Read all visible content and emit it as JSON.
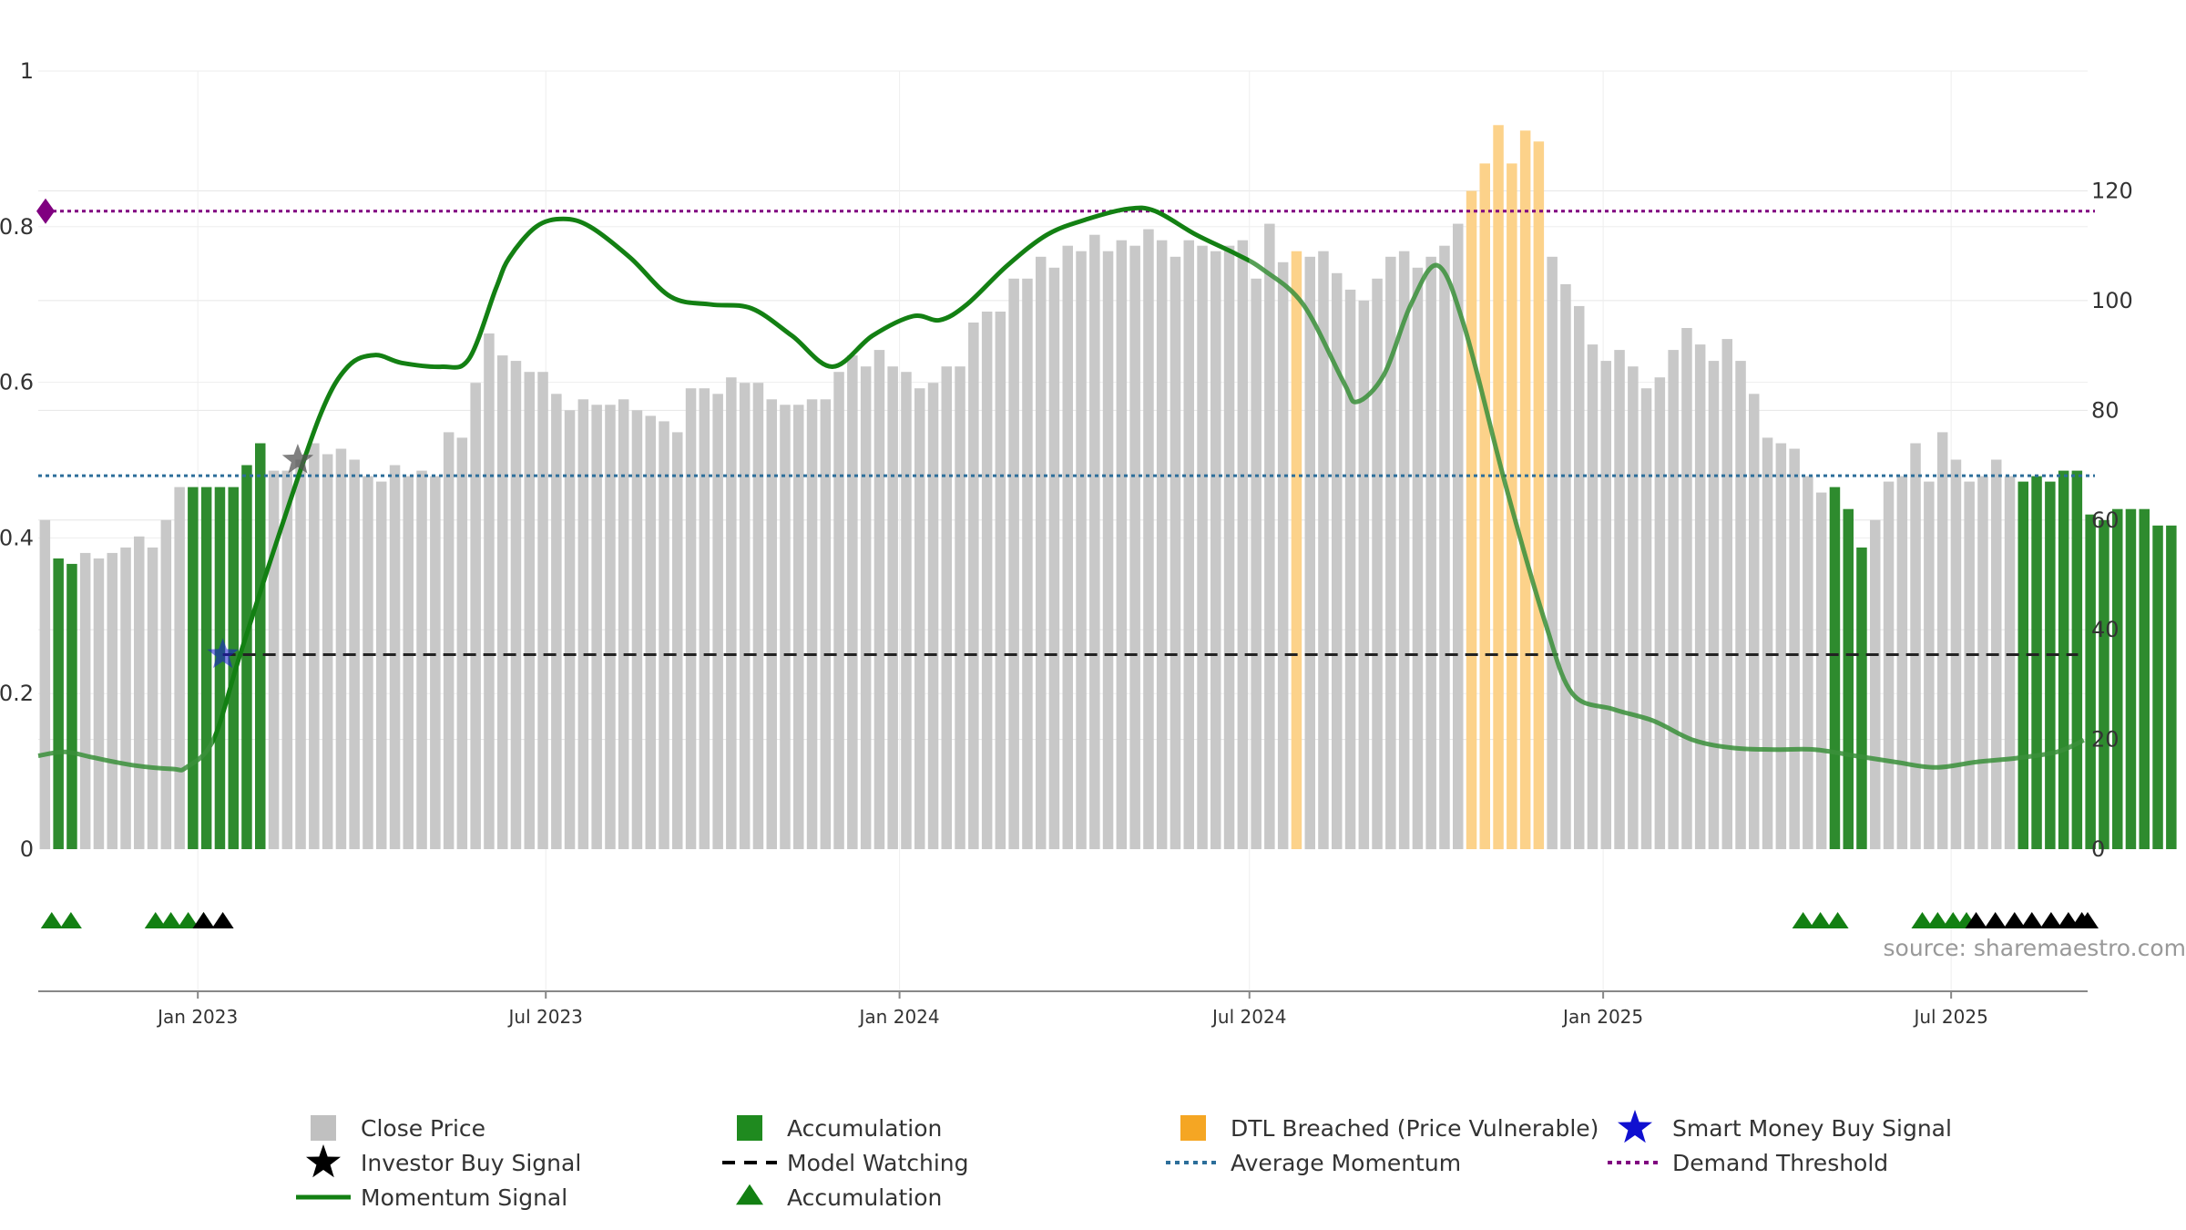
{
  "chart_data": {
    "type": "bar",
    "title": "",
    "xlabel": "",
    "left_axis": {
      "ticks": [
        0,
        0.2,
        0.4,
        0.6,
        0.8,
        1
      ],
      "labels": [
        "0",
        "0.2",
        "0.4",
        "0.6",
        "0.8",
        "1"
      ],
      "ylim": [
        0,
        1
      ]
    },
    "right_axis": {
      "ticks": [
        0,
        20,
        40,
        60,
        80,
        100,
        120
      ],
      "labels": [
        "0",
        "20",
        "40",
        "60",
        "80",
        "100",
        "120"
      ],
      "ylim": [
        0,
        144
      ]
    },
    "x_axis": {
      "start": "2022-10-10",
      "end": "2025-09-10",
      "ticks": [
        "2023-01-01",
        "2023-07-01",
        "2024-01-01",
        "2024-07-01",
        "2025-01-01",
        "2025-07-01"
      ],
      "tick_labels": [
        "Jan 2023",
        "Jul 2023",
        "Jan 2024",
        "Jul 2024",
        "Jan 2025",
        "Jul 2025"
      ]
    },
    "grid": true,
    "legend_position": "bottom",
    "colors": {
      "close_price": "#c8c8c8",
      "accumulation": "#2e8b2e",
      "dtl_breached": "#fcd28a",
      "momentum": "#138013",
      "momentum_faded": "#3a8f3a",
      "average_momentum": "#2c6e9a",
      "demand_threshold": "#800080",
      "model_watching": "#222222",
      "smart_money": "#1a1ad6",
      "investor": "#000000"
    },
    "price_bars": {
      "start_date": "2022-10-10",
      "interval_days": 7,
      "values": [
        60,
        53,
        52,
        54,
        53,
        54,
        55,
        57,
        55,
        60,
        66,
        66,
        66,
        66,
        66,
        70,
        74,
        69,
        69,
        71,
        74,
        72,
        73,
        71,
        68,
        67,
        70,
        68,
        69,
        68,
        76,
        75,
        85,
        94,
        90,
        89,
        87,
        87,
        83,
        80,
        82,
        81,
        81,
        82,
        80,
        79,
        78,
        76,
        84,
        84,
        83,
        86,
        85,
        85,
        82,
        81,
        81,
        82,
        82,
        87,
        90,
        88,
        91,
        88,
        87,
        84,
        85,
        88,
        88,
        96,
        98,
        98,
        104,
        104,
        108,
        106,
        110,
        109,
        112,
        109,
        111,
        110,
        113,
        111,
        108,
        111,
        110,
        109,
        110,
        111,
        104,
        114,
        107,
        109,
        108,
        109,
        105,
        102,
        100,
        104,
        108,
        109,
        106,
        108,
        110,
        114,
        120,
        125,
        132,
        125,
        131,
        129,
        108,
        103,
        99,
        92,
        89,
        91,
        88,
        84,
        86,
        91,
        95,
        92,
        89,
        93,
        89,
        83,
        75,
        74,
        73,
        68,
        65,
        66,
        62,
        55,
        60,
        67,
        68,
        74,
        67,
        76,
        71,
        67,
        68,
        71,
        68,
        67,
        68,
        67,
        69,
        69,
        61,
        60,
        62,
        62,
        62,
        59,
        59
      ],
      "category_codes": "AGGAAAAAAAAGGGGGGAAAAAAAAAAAAAAAAAAAAAAAAAAAAAAAAAAAAAAAAAAAAAAAAAAAAAAAAAAAAAAAAAAAAAAAAAAAAYAAAAAAAAAAAAYYYYYYAAAAAAAAAAAAAAAAAAAAAGGGAAAAAAAAAAAGGGGGGGGGGGGGGG",
      "category_legend": {
        "A": "Close Price",
        "G": "Accumulation",
        "Y": "DTL Breached (Price Vulnerable)"
      }
    },
    "momentum_line": {
      "x": [
        "2022-10-10",
        "2022-10-24",
        "2022-11-07",
        "2022-11-28",
        "2022-12-19",
        "2022-12-26",
        "2023-01-09",
        "2023-01-23",
        "2023-02-13",
        "2023-03-06",
        "2023-03-20",
        "2023-04-03",
        "2023-04-17",
        "2023-05-08",
        "2023-05-22",
        "2023-06-05",
        "2023-06-12",
        "2023-06-26",
        "2023-07-10",
        "2023-07-24",
        "2023-08-14",
        "2023-09-04",
        "2023-09-25",
        "2023-10-16",
        "2023-11-06",
        "2023-11-27",
        "2023-12-18",
        "2024-01-08",
        "2024-01-22",
        "2024-02-05",
        "2024-02-26",
        "2024-03-18",
        "2024-04-08",
        "2024-04-29",
        "2024-05-13",
        "2024-06-03",
        "2024-06-24",
        "2024-07-08",
        "2024-07-29",
        "2024-08-19",
        "2024-08-26",
        "2024-09-09",
        "2024-09-23",
        "2024-10-07",
        "2024-10-21",
        "2024-11-11",
        "2024-12-02",
        "2024-12-16",
        "2025-01-06",
        "2025-01-27",
        "2025-02-17",
        "2025-03-10",
        "2025-03-31",
        "2025-04-21",
        "2025-05-12",
        "2025-06-02",
        "2025-06-23",
        "2025-07-14",
        "2025-08-04",
        "2025-08-25",
        "2025-09-08"
      ],
      "y": [
        0.12,
        0.125,
        0.118,
        0.108,
        0.103,
        0.105,
        0.14,
        0.25,
        0.41,
        0.56,
        0.62,
        0.635,
        0.625,
        0.62,
        0.63,
        0.72,
        0.76,
        0.8,
        0.81,
        0.8,
        0.76,
        0.71,
        0.7,
        0.695,
        0.66,
        0.62,
        0.66,
        0.685,
        0.68,
        0.7,
        0.75,
        0.79,
        0.81,
        0.823,
        0.82,
        0.79,
        0.765,
        0.745,
        0.7,
        0.6,
        0.575,
        0.61,
        0.7,
        0.75,
        0.67,
        0.47,
        0.29,
        0.2,
        0.18,
        0.165,
        0.14,
        0.13,
        0.128,
        0.128,
        0.12,
        0.112,
        0.105,
        0.112,
        0.117,
        0.125,
        0.14
      ],
      "bold_until": "2024-07-01"
    },
    "average_momentum": 0.48,
    "demand_threshold": 0.82,
    "model_watching": {
      "value": 0.25,
      "from": "2023-01-14",
      "to": "2025-09-05"
    },
    "smart_money_signal": {
      "x": "2023-01-14",
      "y": 0.25
    },
    "investor_signal": {
      "x": "2023-02-22",
      "y": 0.5
    },
    "accumulation_markers": [
      "2022-10-17",
      "2022-10-27",
      "2022-12-10",
      "2022-12-18",
      "2022-12-27",
      "2023-01-04",
      "2025-04-15",
      "2025-04-24",
      "2025-05-03",
      "2025-06-16",
      "2025-06-24",
      "2025-07-02",
      "2025-07-09"
    ],
    "investor_markers": [
      "2023-01-04",
      "2023-01-14",
      "2025-07-14",
      "2025-07-24",
      "2025-08-03",
      "2025-08-12",
      "2025-08-22",
      "2025-08-31",
      "2025-09-07",
      "2025-09-10"
    ],
    "demand_marker": {
      "x": "2022-10-10",
      "y": 0.82
    },
    "source": "source: sharemaestro.com",
    "legend": [
      {
        "label": "Close Price",
        "kind": "square",
        "color": "#c0c0c0"
      },
      {
        "label": "Accumulation",
        "kind": "square",
        "color": "#1f8a1f"
      },
      {
        "label": "DTL Breached (Price Vulnerable)",
        "kind": "square",
        "color": "#f5a623"
      },
      {
        "label": "Smart Money Buy Signal",
        "kind": "star",
        "color": "#1010d0"
      },
      {
        "label": "Investor Buy Signal",
        "kind": "star",
        "color": "#000000"
      },
      {
        "label": "Model Watching",
        "kind": "dash",
        "color": "#000000"
      },
      {
        "label": "Average Momentum",
        "kind": "dot",
        "color": "#2c6e9a"
      },
      {
        "label": "Demand Threshold",
        "kind": "dot",
        "color": "#800080"
      },
      {
        "label": "Momentum Signal",
        "kind": "line",
        "color": "#138013"
      },
      {
        "label": "Accumulation",
        "kind": "triangle",
        "color": "#138013"
      }
    ]
  }
}
